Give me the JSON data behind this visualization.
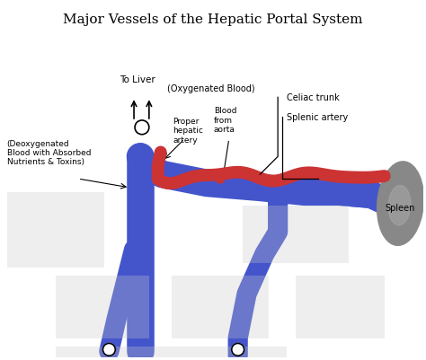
{
  "title": "Major Vessels of the Hepatic Portal System",
  "title_fontsize": 11,
  "bg_color": "#ffffff",
  "blue_color": "#4455cc",
  "red_color": "#cc3333",
  "gray_color": "#888888",
  "white_color": "#ffffff",
  "black_color": "#000000",
  "labels": {
    "to_liver": "To Liver",
    "oxygenated": "(Oxygenated Blood)",
    "deoxygenated": "(Deoxygenated\nBlood with Absorbed\nNutrients & Toxins)",
    "proper_hepatic": "Proper\nhepatic\nartery",
    "blood_from_aorta": "Blood\nfrom\naorta",
    "celiac_trunk": "Celiac trunk",
    "splenic_artery": "Splenic artery",
    "spleen": "Spleen"
  }
}
